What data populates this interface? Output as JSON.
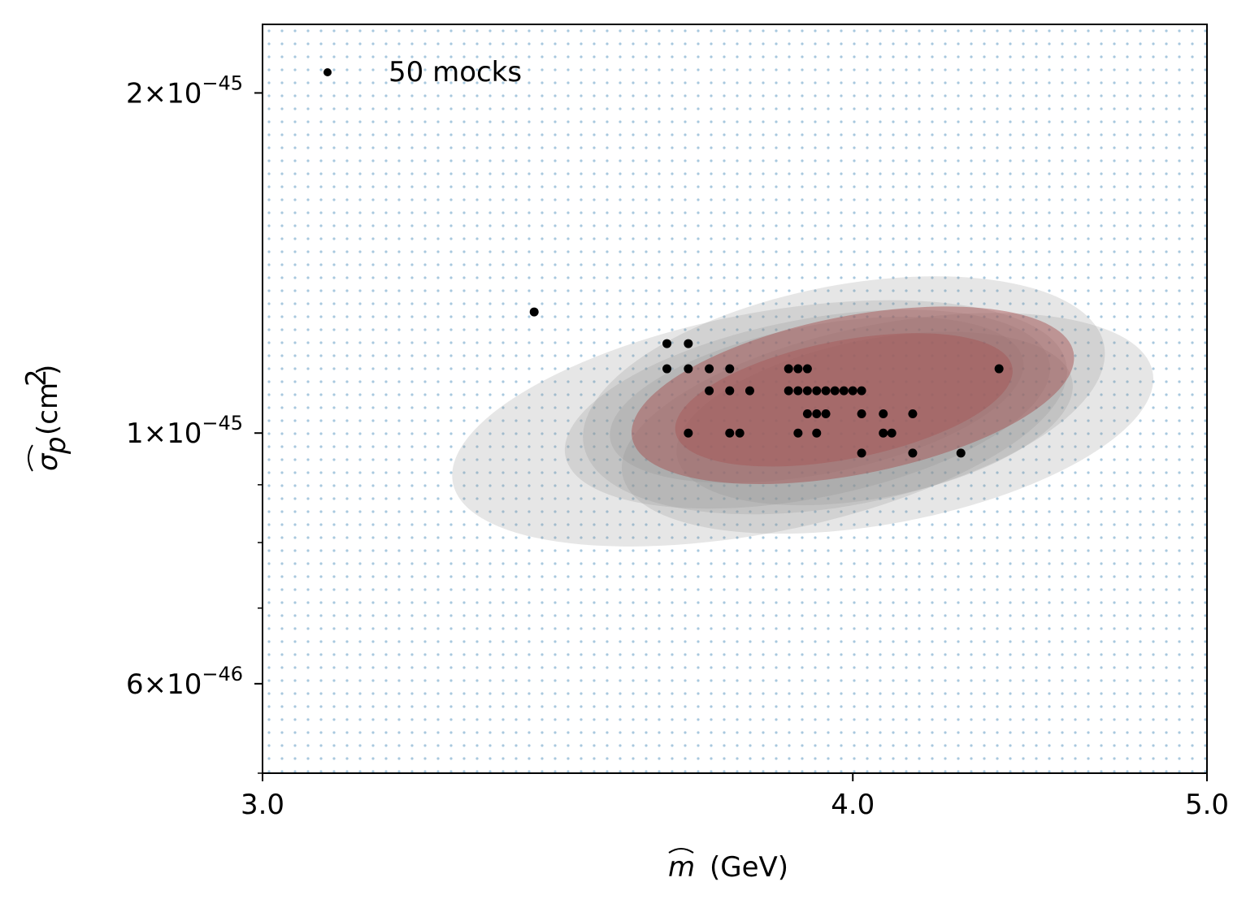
{
  "chart_data": {
    "type": "scatter",
    "xlabel_prefix": "m",
    "xlabel_unit": "(GeV)",
    "ylabel_main": "σ",
    "ylabel_sub": "p",
    "ylabel_unit": "(cm",
    "ylabel_sup": "2",
    "ylabel_close": ")",
    "x_ticks": [
      {
        "value": 3.0,
        "label": "3.0"
      },
      {
        "value": 4.0,
        "label": "4.0"
      },
      {
        "value": 5.0,
        "label": "5.0"
      }
    ],
    "y_ticks": [
      {
        "value": 2e-45,
        "mantissa": "2",
        "exponent": "−45"
      },
      {
        "value": 1e-45,
        "mantissa": "1",
        "exponent": "−45"
      },
      {
        "value": 6e-46,
        "mantissa": "6",
        "exponent": "−46"
      }
    ],
    "y_minor_ticks": [
      5e-46,
      7e-46,
      8e-46,
      9e-46
    ],
    "xlim": [
      3.0,
      5.0
    ],
    "ylim": [
      5e-46,
      2.3e-45
    ],
    "y_scale": "log",
    "x_scale": "reciprocal",
    "legend": {
      "label": "50 mocks",
      "position": "top-left"
    },
    "colors": {
      "points": "#000000",
      "grid_dots": "#8ab5d3",
      "contour_gray": "#8c8c8c",
      "contour_red": "#a54a4a"
    },
    "points": [
      {
        "x": 3.39,
        "y": 1.28e-45
      },
      {
        "x": 3.62,
        "y": 1.2e-45
      },
      {
        "x": 3.66,
        "y": 1.2e-45
      },
      {
        "x": 3.62,
        "y": 1.14e-45
      },
      {
        "x": 3.66,
        "y": 1.14e-45
      },
      {
        "x": 3.7,
        "y": 1.14e-45
      },
      {
        "x": 3.74,
        "y": 1.14e-45
      },
      {
        "x": 3.86,
        "y": 1.14e-45
      },
      {
        "x": 3.88,
        "y": 1.14e-45
      },
      {
        "x": 3.9,
        "y": 1.14e-45
      },
      {
        "x": 4.36,
        "y": 1.14e-45
      },
      {
        "x": 3.7,
        "y": 1.09e-45
      },
      {
        "x": 3.74,
        "y": 1.09e-45
      },
      {
        "x": 3.78,
        "y": 1.09e-45
      },
      {
        "x": 3.86,
        "y": 1.09e-45
      },
      {
        "x": 3.88,
        "y": 1.09e-45
      },
      {
        "x": 3.9,
        "y": 1.09e-45
      },
      {
        "x": 3.92,
        "y": 1.09e-45
      },
      {
        "x": 3.94,
        "y": 1.09e-45
      },
      {
        "x": 3.96,
        "y": 1.09e-45
      },
      {
        "x": 3.98,
        "y": 1.09e-45
      },
      {
        "x": 4.0,
        "y": 1.09e-45
      },
      {
        "x": 4.02,
        "y": 1.09e-45
      },
      {
        "x": 3.9,
        "y": 1.04e-45
      },
      {
        "x": 3.92,
        "y": 1.04e-45
      },
      {
        "x": 3.94,
        "y": 1.04e-45
      },
      {
        "x": 4.02,
        "y": 1.04e-45
      },
      {
        "x": 4.07,
        "y": 1.04e-45
      },
      {
        "x": 4.14,
        "y": 1.04e-45
      },
      {
        "x": 3.66,
        "y": 1e-45
      },
      {
        "x": 3.74,
        "y": 1e-45
      },
      {
        "x": 3.76,
        "y": 1e-45
      },
      {
        "x": 3.88,
        "y": 1e-45
      },
      {
        "x": 3.92,
        "y": 1e-45
      },
      {
        "x": 4.07,
        "y": 1e-45
      },
      {
        "x": 4.09,
        "y": 1e-45
      },
      {
        "x": 4.02,
        "y": 9.6e-46
      },
      {
        "x": 4.14,
        "y": 9.6e-46
      },
      {
        "x": 4.26,
        "y": 9.6e-46
      }
    ],
    "contours": [
      {
        "color": "gray",
        "opacity": 0.22,
        "cx": 3.8,
        "cy": 1.02e-45,
        "rx": 0.62,
        "ry": 0.22
      },
      {
        "color": "gray",
        "opacity": 0.22,
        "cx": 3.98,
        "cy": 1.08e-45,
        "rx": 0.58,
        "ry": 0.22
      },
      {
        "color": "gray",
        "opacity": 0.22,
        "cx": 4.08,
        "cy": 1.02e-45,
        "rx": 0.62,
        "ry": 0.2
      },
      {
        "color": "gray",
        "opacity": 0.22,
        "cx": 3.9,
        "cy": 1.05e-45,
        "rx": 0.52,
        "ry": 0.18
      },
      {
        "color": "gray",
        "opacity": 0.22,
        "cx": 3.92,
        "cy": 1.07e-45,
        "rx": 0.45,
        "ry": 0.15
      },
      {
        "color": "gray",
        "opacity": 0.22,
        "cx": 4.05,
        "cy": 1.03e-45,
        "rx": 0.46,
        "ry": 0.16
      },
      {
        "color": "red",
        "opacity": 0.45,
        "cx": 4.0,
        "cy": 1.08e-45,
        "rx": 0.5,
        "ry": 0.16
      },
      {
        "color": "red",
        "opacity": 0.35,
        "cx": 3.98,
        "cy": 1.07e-45,
        "rx": 0.38,
        "ry": 0.12
      }
    ]
  }
}
